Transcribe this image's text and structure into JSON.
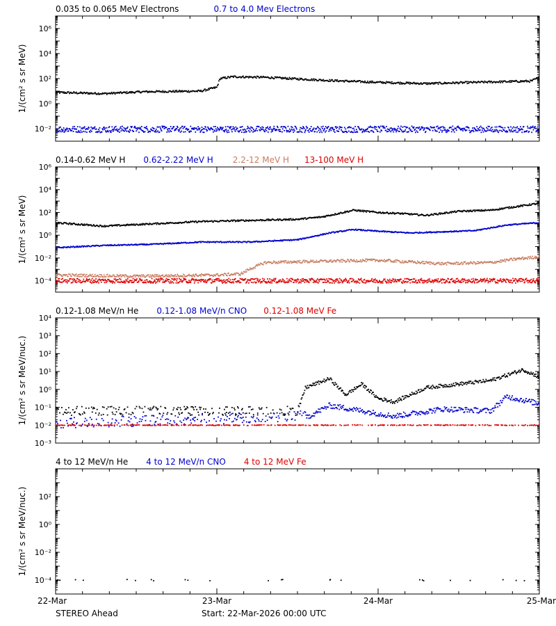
{
  "panels": [
    {
      "id": "electrons",
      "legend": [
        {
          "name": "0.035 to 0.065 MeV Electrons",
          "color": "#000000"
        },
        {
          "name": "0.7 to 4.0 Mev Electrons",
          "color": "#0000cc"
        }
      ],
      "ylabel": "1/(cm² s sr MeV)",
      "log_range": [
        -3,
        7
      ],
      "ticks": [
        {
          "exp": -2,
          "label": "10⁻²"
        },
        {
          "exp": 0,
          "label": "10⁰"
        },
        {
          "exp": 2,
          "label": "10²"
        },
        {
          "exp": 4,
          "label": "10⁴"
        },
        {
          "exp": 6,
          "label": "10⁶"
        }
      ],
      "series": [
        {
          "color": "#000000",
          "style": "dense",
          "noise": 0.08,
          "points": [
            [
              0,
              0.9
            ],
            [
              0.3,
              0.8
            ],
            [
              0.55,
              0.95
            ],
            [
              0.9,
              1.0
            ],
            [
              1.0,
              1.3
            ],
            [
              1.02,
              2.0
            ],
            [
              1.1,
              2.15
            ],
            [
              1.3,
              2.1
            ],
            [
              1.7,
              1.85
            ],
            [
              2.0,
              1.7
            ],
            [
              2.3,
              1.6
            ],
            [
              2.6,
              1.7
            ],
            [
              2.95,
              1.8
            ],
            [
              3.0,
              2.1
            ]
          ]
        },
        {
          "color": "#0000cc",
          "style": "scatter",
          "noise": 0.25,
          "points": [
            [
              0,
              -2.05
            ],
            [
              3.0,
              -2.05
            ]
          ]
        }
      ]
    },
    {
      "id": "protons",
      "legend": [
        {
          "name": "0.14-0.62 MeV H",
          "color": "#000000"
        },
        {
          "name": "0.62-2.22 MeV H",
          "color": "#0000cc"
        },
        {
          "name": "2.2-12 MeV H",
          "color": "#c77d5f"
        },
        {
          "name": "13-100 MeV H",
          "color": "#dd0000"
        }
      ],
      "ylabel": "1/(cm² s sr MeV)",
      "log_range": [
        -5,
        6
      ],
      "ticks": [
        {
          "exp": -4,
          "label": "10⁻⁴"
        },
        {
          "exp": -2,
          "label": "10⁻²"
        },
        {
          "exp": 0,
          "label": "10⁰"
        },
        {
          "exp": 2,
          "label": "10²"
        },
        {
          "exp": 4,
          "label": "10⁴"
        },
        {
          "exp": 6,
          "label": "10⁶"
        }
      ],
      "series": [
        {
          "color": "#000000",
          "style": "dense",
          "noise": 0.07,
          "points": [
            [
              0,
              1.1
            ],
            [
              0.3,
              0.8
            ],
            [
              0.6,
              1.0
            ],
            [
              0.9,
              1.2
            ],
            [
              1.2,
              1.3
            ],
            [
              1.5,
              1.4
            ],
            [
              1.65,
              1.6
            ],
            [
              1.85,
              2.2
            ],
            [
              2.0,
              2.0
            ],
            [
              2.15,
              1.9
            ],
            [
              2.3,
              1.75
            ],
            [
              2.5,
              2.1
            ],
            [
              2.7,
              2.2
            ],
            [
              2.85,
              2.5
            ],
            [
              3.0,
              2.8
            ]
          ]
        },
        {
          "color": "#0000cc",
          "style": "dense",
          "noise": 0.05,
          "points": [
            [
              0,
              -1.1
            ],
            [
              0.3,
              -0.9
            ],
            [
              0.6,
              -0.8
            ],
            [
              0.9,
              -0.6
            ],
            [
              1.2,
              -0.6
            ],
            [
              1.35,
              -0.5
            ],
            [
              1.5,
              -0.4
            ],
            [
              1.7,
              0.2
            ],
            [
              1.85,
              0.5
            ],
            [
              2.0,
              0.35
            ],
            [
              2.2,
              0.2
            ],
            [
              2.4,
              0.3
            ],
            [
              2.6,
              0.4
            ],
            [
              2.8,
              0.9
            ],
            [
              3.0,
              1.1
            ]
          ]
        },
        {
          "color": "#c77d5f",
          "style": "dense",
          "noise": 0.12,
          "points": [
            [
              0,
              -3.5
            ],
            [
              0.5,
              -3.6
            ],
            [
              1.0,
              -3.5
            ],
            [
              1.15,
              -3.4
            ],
            [
              1.2,
              -3.0
            ],
            [
              1.3,
              -2.4
            ],
            [
              1.6,
              -2.3
            ],
            [
              2.0,
              -2.2
            ],
            [
              2.4,
              -2.5
            ],
            [
              2.7,
              -2.4
            ],
            [
              2.85,
              -2.1
            ],
            [
              3.0,
              -1.9
            ]
          ]
        },
        {
          "color": "#dd0000",
          "style": "scatter",
          "noise": 0.2,
          "points": [
            [
              0,
              -4.0
            ],
            [
              3.0,
              -4.0
            ]
          ]
        }
      ]
    },
    {
      "id": "lowhe",
      "legend": [
        {
          "name": "0.12-1.08 MeV/n He",
          "color": "#000000"
        },
        {
          "name": "0.12-1.08 MeV/n CNO",
          "color": "#0000cc"
        },
        {
          "name": "0.12-1.08 MeV Fe",
          "color": "#dd0000"
        }
      ],
      "ylabel": "1/(cm² s sr MeV/nuc.)",
      "log_range": [
        -3,
        4
      ],
      "ticks": [
        {
          "exp": -3,
          "label": "10⁻³"
        },
        {
          "exp": -2,
          "label": "10⁻²"
        },
        {
          "exp": -1,
          "label": "10⁻¹"
        },
        {
          "exp": 0,
          "label": "10⁰"
        },
        {
          "exp": 1,
          "label": "10¹"
        },
        {
          "exp": 2,
          "label": "10²"
        },
        {
          "exp": 3,
          "label": "10³"
        },
        {
          "exp": 4,
          "label": "10⁴"
        }
      ],
      "series": [
        {
          "color": "#000000",
          "style": "levels",
          "noise": 0.1,
          "points": [
            [
              0,
              -1.3
            ],
            [
              1.5,
              -1.3
            ],
            [
              1.55,
              0.1
            ],
            [
              1.7,
              0.6
            ],
            [
              1.8,
              -0.3
            ],
            [
              1.9,
              0.3
            ],
            [
              2.0,
              -0.5
            ],
            [
              2.1,
              -0.7
            ],
            [
              2.3,
              0.1
            ],
            [
              2.5,
              0.3
            ],
            [
              2.7,
              0.5
            ],
            [
              2.8,
              0.8
            ],
            [
              2.9,
              1.1
            ],
            [
              3.0,
              0.7
            ]
          ]
        },
        {
          "color": "#0000cc",
          "style": "levels",
          "noise": 0.15,
          "points": [
            [
              0,
              -2.0
            ],
            [
              1.55,
              -1.6
            ],
            [
              1.7,
              -0.9
            ],
            [
              1.9,
              -1.2
            ],
            [
              2.1,
              -1.5
            ],
            [
              2.4,
              -1.1
            ],
            [
              2.7,
              -1.2
            ],
            [
              2.8,
              -0.4
            ],
            [
              3.0,
              -0.8
            ]
          ]
        },
        {
          "color": "#dd0000",
          "style": "floor",
          "noise": 0.02,
          "points": [
            [
              0,
              -2.0
            ],
            [
              3.0,
              -2.0
            ]
          ]
        }
      ]
    },
    {
      "id": "highhe",
      "legend": [
        {
          "name": "4 to 12 MeV/n He",
          "color": "#000000"
        },
        {
          "name": "4 to 12 MeV/n CNO",
          "color": "#0000cc"
        },
        {
          "name": "4 to 12 MeV Fe",
          "color": "#dd0000"
        }
      ],
      "ylabel": "1/(cm² s sr MeV/nuc.)",
      "log_range": [
        -5,
        4
      ],
      "ticks": [
        {
          "exp": -4,
          "label": "10⁻⁴"
        },
        {
          "exp": -2,
          "label": "10⁻²"
        },
        {
          "exp": 0,
          "label": "10⁰"
        },
        {
          "exp": 2,
          "label": "10²"
        }
      ],
      "series": [
        {
          "color": "#000000",
          "style": "sparse",
          "noise": 0.05,
          "points": [
            [
              0,
              -4.0
            ],
            [
              3.0,
              -4.0
            ]
          ]
        }
      ]
    }
  ],
  "x_axis": {
    "range_days": [
      0,
      3
    ],
    "minor_per_day": 6,
    "labels": [
      {
        "day": 0,
        "text": "22-Mar"
      },
      {
        "day": 1,
        "text": "23-Mar"
      },
      {
        "day": 2,
        "text": "24-Mar"
      },
      {
        "day": 3,
        "text": "25-Mar"
      }
    ]
  },
  "footer": {
    "spacecraft": "STEREO Ahead",
    "start": "Start: 22-Mar-2026 00:00 UTC"
  }
}
